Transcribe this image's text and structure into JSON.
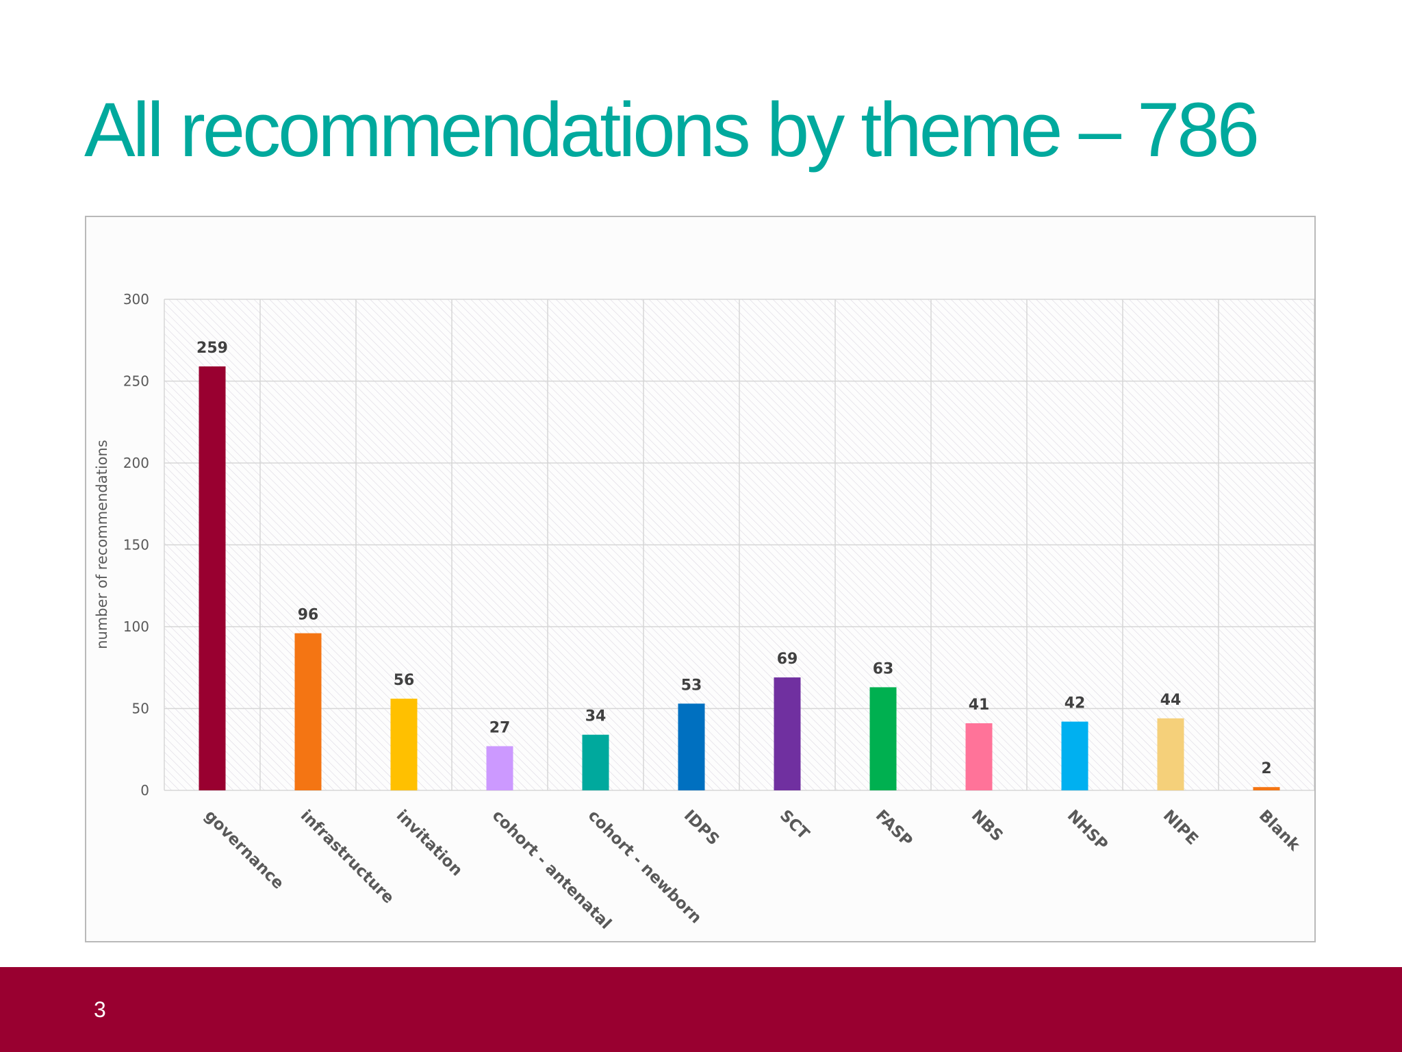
{
  "slide": {
    "title": "All recommendations by theme – 786",
    "page_number": "3"
  },
  "colors": {
    "title": "#00A99D",
    "footer": "#990030"
  },
  "chart_data": {
    "type": "bar",
    "title": "",
    "xlabel": "",
    "ylabel": "number of recommendations",
    "ylim": [
      0,
      300
    ],
    "yticks": [
      0,
      50,
      100,
      150,
      200,
      250,
      300
    ],
    "grid": true,
    "legend": "none",
    "categories": [
      "governance",
      "infrastructure",
      "invitation",
      "cohort - antenatal",
      "cohort - newborn",
      "IDPS",
      "SCT",
      "FASP",
      "NBS",
      "NHSP",
      "NIPE",
      "Blank"
    ],
    "values": [
      259,
      96,
      56,
      27,
      34,
      53,
      69,
      63,
      41,
      42,
      44,
      2
    ],
    "bar_colors": [
      "#990030",
      "#F47513",
      "#FFC000",
      "#CC99FF",
      "#00A99D",
      "#0070C0",
      "#7030A0",
      "#00B050",
      "#FF7399",
      "#00B0F0",
      "#F5D07A",
      "#F47513"
    ]
  }
}
